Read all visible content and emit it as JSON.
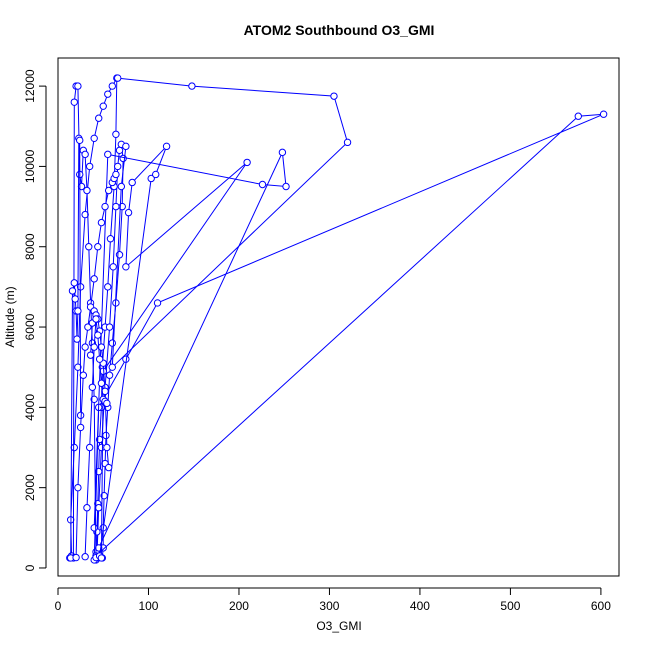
{
  "chart_data": {
    "type": "line",
    "title": "ATOM2 Southbound O3_GMI",
    "xlabel": "O3_GMI",
    "ylabel": "Altitude (m)",
    "xlim": [
      0,
      620
    ],
    "ylim": [
      -200,
      12700
    ],
    "xticks": [
      0,
      100,
      200,
      300,
      400,
      500,
      600
    ],
    "yticks": [
      0,
      2000,
      4000,
      6000,
      8000,
      10000,
      12000
    ],
    "grid": false,
    "legend": "none",
    "series_color": "#0000ff",
    "series": [
      {
        "x": [
          13,
          15,
          14,
          18,
          22,
          25,
          30,
          35,
          40,
          45,
          50,
          55,
          60,
          65,
          64,
          62,
          58,
          55,
          52,
          49,
          48,
          46,
          45,
          44,
          43,
          42,
          42,
          43,
          45,
          48,
          52,
          57,
          61,
          64,
          66,
          68,
          70,
          72,
          71,
          68,
          64,
          60,
          57,
          55,
          53,
          52,
          51,
          50,
          50,
          49
        ],
        "y": [
          250,
          300,
          1200,
          3000,
          5000,
          7000,
          8800,
          10000,
          10700,
          11200,
          11500,
          11800,
          12000,
          12200,
          10800,
          9500,
          8200,
          7000,
          6000,
          5000,
          4000,
          3200,
          2400,
          1600,
          900,
          400,
          200,
          250,
          1500,
          3000,
          4500,
          6000,
          7500,
          9000,
          10000,
          10400,
          10550,
          10200,
          9000,
          7800,
          6600,
          5600,
          4800,
          4000,
          3300,
          2600,
          1800,
          1000,
          500,
          250
        ]
      },
      {
        "x": [
          66,
          148,
          305,
          320,
          60,
          70,
          75
        ],
        "y": [
          12200,
          12000,
          11750,
          10600,
          5000,
          9500,
          10500
        ]
      },
      {
        "x": [
          42,
          575,
          603,
          110,
          75,
          45,
          40
        ],
        "y": [
          300,
          11250,
          11300,
          6600,
          5200,
          4000,
          200
        ]
      },
      {
        "x": [
          45,
          248,
          252,
          226,
          55,
          40
        ],
        "y": [
          500,
          10350,
          9500,
          9550,
          10300,
          1000
        ]
      },
      {
        "x": [
          17,
          18,
          20,
          22,
          24,
          26,
          28,
          30,
          32,
          34,
          36,
          38,
          40,
          42
        ],
        "y": [
          250,
          11600,
          12000,
          12000,
          9800,
          9500,
          10400,
          10300,
          9400,
          8000,
          6600,
          5600,
          4200,
          260
        ]
      },
      {
        "x": [
          14,
          16,
          18,
          19,
          20,
          21,
          22,
          23,
          24,
          25
        ],
        "y": [
          250,
          6900,
          7100,
          6700,
          6400,
          5700,
          6400,
          10700,
          10650,
          3800
        ]
      },
      {
        "x": [
          46,
          103,
          108,
          120,
          82,
          78,
          75,
          209,
          50,
          48
        ],
        "y": [
          300,
          9700,
          9800,
          10500,
          9600,
          8850,
          7500,
          10100,
          4900,
          250
        ]
      },
      {
        "x": [
          20,
          22,
          25,
          28,
          30,
          33,
          36,
          40,
          44,
          48,
          52,
          56,
          60,
          62,
          64
        ],
        "y": [
          260,
          2000,
          3500,
          4800,
          5500,
          6000,
          6500,
          7200,
          8000,
          8600,
          9000,
          9400,
          9600,
          9700,
          9800
        ]
      },
      {
        "x": [
          36,
          38,
          40,
          42,
          44,
          46,
          48,
          50,
          52,
          54,
          56
        ],
        "y": [
          5300,
          6100,
          6400,
          6300,
          6200,
          5900,
          5500,
          5100,
          4400,
          3000,
          2500
        ]
      },
      {
        "x": [
          30,
          32,
          35,
          38,
          40,
          42,
          44,
          46,
          48,
          50,
          52,
          54
        ],
        "y": [
          280,
          1500,
          3000,
          4500,
          5500,
          6200,
          5800,
          5200,
          4600,
          4200,
          4150,
          4100
        ]
      }
    ]
  }
}
